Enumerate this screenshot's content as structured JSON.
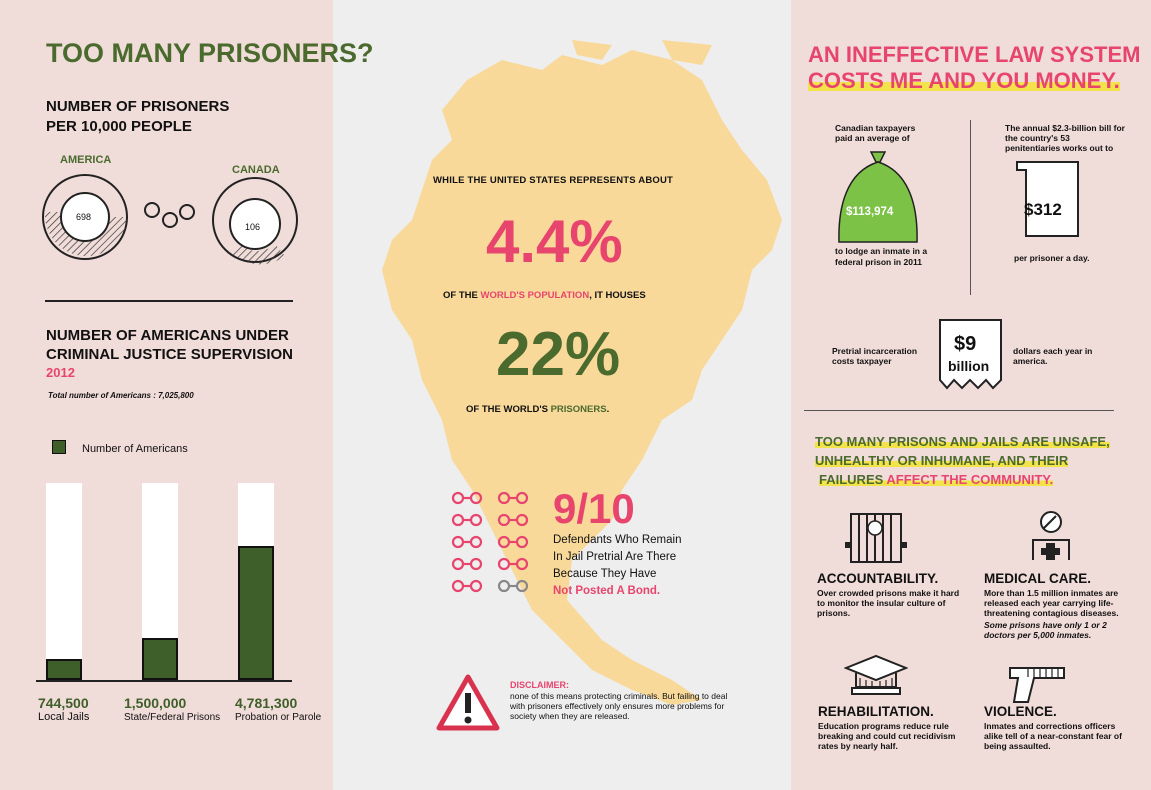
{
  "left": {
    "title": "TOO MANY PRISONERS?",
    "rate_heading": "NUMBER OF PRISONERS PER 10,000 PEOPLE",
    "america_label": "AMERICA",
    "canada_label": "CANADA",
    "america_value": "698",
    "canada_value": "106",
    "supervision_heading": "NUMBER OF AMERICANS UNDER CRIMINAL JUSTICE SUPERVISION",
    "year": "2012",
    "total_note": "Total number of Americans : 7,025,800",
    "legend_label": "Number of Americans"
  },
  "chart_data": {
    "type": "bar",
    "categories": [
      "Local Jails",
      "State/Federal Prisons",
      "Probation or Parole"
    ],
    "series": [
      {
        "name": "Number of Americans",
        "values": [
          744500,
          1500000,
          4781300
        ]
      }
    ],
    "value_labels": [
      "744,500",
      "1,500,000",
      "4,781,300"
    ],
    "ylim": [
      0,
      7025800
    ],
    "legend": "top-left",
    "grid": false
  },
  "center": {
    "intro": "WHILE THE UNITED STATES REPRESENTS ABOUT",
    "stat1": "4.4%",
    "line2_pre": "OF THE ",
    "line2_highlight": "WORLD'S POPULATION",
    "line2_post": ", IT HOUSES",
    "stat2": "22%",
    "line3_pre": "OF THE WORLD'S ",
    "line3_highlight": "PRISONERS",
    "line3_post": ".",
    "fraction": "9/10",
    "fraction_line1": "Defendants Who Remain",
    "fraction_line2": "In Jail Pretrial Are There",
    "fraction_line3": "Because They Have",
    "fraction_highlight": "Not Posted A Bond.",
    "disclaimer_title": "DISCLAIMER:",
    "disclaimer_text": "none of this means protecting criminals. But failing to deal with prisoners effectively only ensures more problems for society when they are released."
  },
  "right": {
    "title_line1": "AN INEFFECTIVE LAW SYSTEM",
    "title_line2": "COSTS ME AND YOU MONEY.",
    "cost1_pre": "Canadian taxpayers paid an average of",
    "cost1_value": "$113,974",
    "cost1_post": "to lodge an inmate in a federal prison in 2011",
    "cost2_pre": "The annual $2.3-billion bill for the country's 53 penitentiaries works out to",
    "cost2_value": "$312",
    "cost2_post": "per prisoner a day.",
    "cost3_pre": "Pretrial incarceration costs taxpayer",
    "cost3_value_line1": "$9",
    "cost3_value_line2": "billion",
    "cost3_post": "dollars each year in america.",
    "unsafe_line1": "TOO MANY PRISONS AND JAILS ARE UNSAFE,",
    "unsafe_line2": "UNHEALTHY OR INHUMANE, AND THEIR",
    "unsafe_line3_pre": "FAILURES ",
    "unsafe_line3_mid": "AFFECT THE COMMUNITY",
    "unsafe_line3_post": ".",
    "acc_title": "ACCOUNTABILITY.",
    "acc_text": "Over crowded prisons make it hard to monitor the insular culture of prisons.",
    "med_title": "MEDICAL CARE.",
    "med_text": "More than 1.5 million inmates are released each year carrying life-threatening contagious diseases.",
    "med_note": "Some prisons have only 1 or 2 doctors per 5,000 inmates.",
    "rehab_title": "REHABILITATION.",
    "rehab_text": "Education programs reduce rule breaking and could cut recidivism rates by nearly half.",
    "violence_title": "VIOLENCE.",
    "violence_text": "Inmates and corrections officers alike tell of a near-constant fear of being assaulted."
  },
  "colors": {
    "green": "#4a6a2e",
    "pink": "#e8456e",
    "yellow_highlight": "#f3e34a",
    "map": "#f8d99a",
    "panel": "#f0dcd8"
  },
  "icons": [
    "handcuffs-icon",
    "money-bag-icon",
    "receipt-icon",
    "warning-icon",
    "prison-bars-icon",
    "doctor-icon",
    "graduation-cap-icon",
    "gun-icon"
  ]
}
